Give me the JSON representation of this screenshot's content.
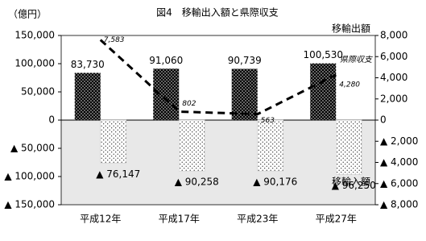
{
  "chart_data": {
    "type": "bar",
    "title": "図4　移輸出入額と県際収支",
    "y_label": "（億円）",
    "categories": [
      "平成12年",
      "平成17年",
      "平成23年",
      "平成27年"
    ],
    "series": [
      {
        "name": "移輸出額",
        "color": "#000000",
        "values": [
          83730,
          91060,
          90739,
          100530
        ],
        "value_labels": [
          "83,730",
          "91,060",
          "90,739",
          "100,530"
        ]
      },
      {
        "name": "移輸入額",
        "color": "#ffffff",
        "values": [
          -76147,
          -90258,
          -90176,
          -96250
        ],
        "value_labels": [
          "▲ 76,147",
          "▲ 90,258",
          "▲ 90,176",
          "▲ 96,250"
        ]
      },
      {
        "name": "県際収支",
        "type": "line",
        "axis": "y2",
        "color": "#000000",
        "values": [
          7583,
          802,
          563,
          4280
        ],
        "value_labels": [
          "7,583",
          "802",
          "563",
          "4,280"
        ]
      }
    ],
    "ylim": [
      -150000,
      150000
    ],
    "yticks": [
      {
        "value": -150000,
        "label": "▲ 150,000"
      },
      {
        "value": -100000,
        "label": "▲ 100,000"
      },
      {
        "value": -50000,
        "label": "▲ 50,000"
      },
      0,
      {
        "value": 50000,
        "label": "50,000"
      },
      {
        "value": 100000,
        "label": "100,000"
      },
      {
        "value": 150000,
        "label": "150,000"
      }
    ],
    "y2lim": [
      -8000,
      8000
    ],
    "y2ticks": [
      {
        "value": -8000,
        "label": "▲ 8,000"
      },
      {
        "value": -6000,
        "label": "▲ 6,000"
      },
      {
        "value": -4000,
        "label": "▲ 4,000"
      },
      {
        "value": -2000,
        "label": "▲ 2,000"
      },
      0,
      {
        "value": 2000,
        "label": "2,000"
      },
      {
        "value": 4000,
        "label": "4,000"
      },
      {
        "value": 6000,
        "label": "6,000"
      },
      {
        "value": 8000,
        "label": "8,000"
      }
    ]
  }
}
